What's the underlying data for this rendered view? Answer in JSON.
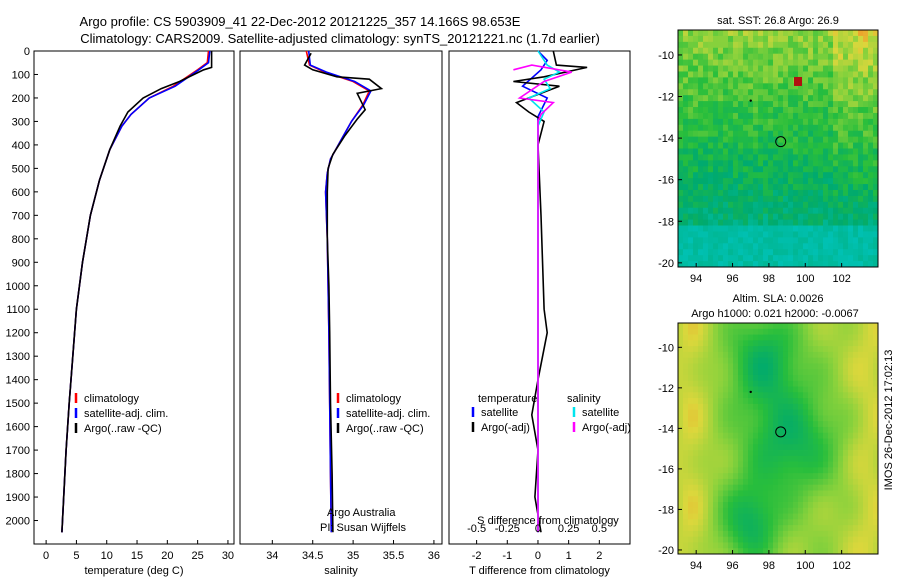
{
  "header": {
    "line1": "Argo profile: CS 5903909_41 22-Dec-2012 20121225_357 14.166S 98.653E",
    "line2": "Climatology: CARS2009. Satellite-adjusted climatology: synTS_20121221.nc (1.7d earlier)"
  },
  "side_stamp": "IMOS 26-Dec-2012 17:02:13",
  "colors": {
    "climatology": "#ff0000",
    "satellite": "#0000ff",
    "argo": "#000000",
    "sal_sat": "#00e5ee",
    "sal_argo": "#ff00ff"
  },
  "chart_data": [
    {
      "type": "line",
      "id": "temperature",
      "xlabel": "temperature (deg C)",
      "ylabel": "",
      "xlim": [
        -2,
        31
      ],
      "ylim": [
        2100,
        0
      ],
      "xticks": [
        0,
        5,
        10,
        15,
        20,
        25,
        30
      ],
      "yticks": [
        0,
        100,
        200,
        300,
        400,
        500,
        600,
        700,
        800,
        900,
        1000,
        1100,
        1200,
        1300,
        1400,
        1500,
        1600,
        1700,
        1800,
        1900,
        2000
      ],
      "legend": [
        "climatology",
        "satellite-adj. clim.",
        "Argo(..raw -QC)"
      ],
      "series": [
        {
          "name": "climatology",
          "color": "#ff0000",
          "points": [
            [
              26.8,
              0
            ],
            [
              26.6,
              50
            ],
            [
              25,
              80
            ],
            [
              21,
              150
            ],
            [
              17,
              200
            ],
            [
              14,
              270
            ],
            [
              12.5,
              320
            ],
            [
              10.5,
              420
            ],
            [
              8.8,
              550
            ],
            [
              7.3,
              700
            ],
            [
              6,
              900
            ],
            [
              5,
              1100
            ],
            [
              4.4,
              1300
            ],
            [
              3.8,
              1500
            ],
            [
              3.3,
              1700
            ],
            [
              2.9,
              1900
            ],
            [
              2.6,
              2050
            ]
          ]
        },
        {
          "name": "satellite-adj. clim.",
          "color": "#0000ff",
          "points": [
            [
              27,
              0
            ],
            [
              26.8,
              50
            ],
            [
              25.2,
              80
            ],
            [
              21.3,
              150
            ],
            [
              17,
              200
            ],
            [
              14,
              270
            ],
            [
              12.5,
              320
            ],
            [
              10.5,
              420
            ],
            [
              8.8,
              550
            ],
            [
              7.3,
              700
            ],
            [
              6,
              900
            ],
            [
              5,
              1100
            ],
            [
              4.4,
              1300
            ],
            [
              3.8,
              1500
            ],
            [
              3.3,
              1700
            ],
            [
              2.9,
              1900
            ],
            [
              2.6,
              2050
            ]
          ]
        },
        {
          "name": "Argo(..raw -QC)",
          "color": "#000000",
          "points": [
            [
              27.3,
              0
            ],
            [
              27.3,
              70
            ],
            [
              26,
              80
            ],
            [
              22,
              130
            ],
            [
              19,
              160
            ],
            [
              16,
              200
            ],
            [
              13.5,
              260
            ],
            [
              12.2,
              320
            ],
            [
              10.5,
              420
            ],
            [
              8.8,
              550
            ],
            [
              7.3,
              700
            ],
            [
              6,
              900
            ],
            [
              5,
              1100
            ],
            [
              4.4,
              1300
            ],
            [
              3.8,
              1500
            ],
            [
              3.3,
              1700
            ],
            [
              2.9,
              1900
            ],
            [
              2.6,
              2050
            ]
          ]
        }
      ]
    },
    {
      "type": "line",
      "id": "salinity",
      "xlabel": "salinity",
      "ylabel": "",
      "xlim": [
        33.6,
        36.1
      ],
      "ylim": [
        2100,
        0
      ],
      "xticks": [
        34,
        34.5,
        35,
        35.5,
        36
      ],
      "legend": [
        "climatology",
        "satellite-adj. clim.",
        "Argo(..raw -QC)"
      ],
      "annotation": [
        "Argo Australia",
        "PI: Susan Wijffels"
      ],
      "series": [
        {
          "name": "climatology",
          "color": "#ff0000",
          "points": [
            [
              34.42,
              0
            ],
            [
              34.46,
              60
            ],
            [
              34.65,
              90
            ],
            [
              35.0,
              130
            ],
            [
              35.2,
              170
            ],
            [
              35.12,
              230
            ],
            [
              34.98,
              300
            ],
            [
              34.85,
              380
            ],
            [
              34.72,
              460
            ],
            [
              34.68,
              520
            ],
            [
              34.66,
              600
            ],
            [
              34.68,
              800
            ],
            [
              34.69,
              1000
            ],
            [
              34.7,
              1200
            ],
            [
              34.71,
              1500
            ],
            [
              34.72,
              1800
            ],
            [
              34.73,
              2050
            ]
          ]
        },
        {
          "name": "satellite-adj. clim.",
          "color": "#0000ff",
          "points": [
            [
              34.45,
              0
            ],
            [
              34.47,
              60
            ],
            [
              34.67,
              90
            ],
            [
              35.02,
              130
            ],
            [
              35.22,
              170
            ],
            [
              35.13,
              230
            ],
            [
              34.98,
              300
            ],
            [
              34.85,
              380
            ],
            [
              34.72,
              460
            ],
            [
              34.68,
              520
            ],
            [
              34.66,
              600
            ],
            [
              34.68,
              800
            ],
            [
              34.69,
              1000
            ],
            [
              34.7,
              1200
            ],
            [
              34.71,
              1500
            ],
            [
              34.72,
              1800
            ],
            [
              34.73,
              2050
            ]
          ]
        },
        {
          "name": "Argo(..raw -QC)",
          "color": "#000000",
          "points": [
            [
              34.48,
              10
            ],
            [
              34.4,
              60
            ],
            [
              34.5,
              80
            ],
            [
              34.8,
              110
            ],
            [
              35.2,
              120
            ],
            [
              35.35,
              160
            ],
            [
              35.05,
              180
            ],
            [
              35.15,
              250
            ],
            [
              35.05,
              290
            ],
            [
              34.9,
              360
            ],
            [
              34.75,
              440
            ],
            [
              34.69,
              500
            ],
            [
              34.68,
              600
            ],
            [
              34.68,
              800
            ],
            [
              34.7,
              1000
            ],
            [
              34.71,
              1200
            ],
            [
              34.72,
              1500
            ],
            [
              34.74,
              1800
            ],
            [
              34.75,
              2050
            ]
          ]
        }
      ]
    },
    {
      "type": "line",
      "id": "difference",
      "xlabel": "T difference from climatology",
      "xlabel_top": "S difference from climatology",
      "xlim": [
        -2.9,
        3.0
      ],
      "ylim": [
        2100,
        0
      ],
      "xticks": [
        -2,
        -1,
        0,
        1,
        2
      ],
      "xticks_s": [
        "-0.5",
        "-0.25",
        "0",
        "0.25",
        "0.5"
      ],
      "legend_left_title": "temperature",
      "legend_right_title": "salinity",
      "legend": [
        "satellite",
        "Argo(-adj)",
        "satellite",
        "Argo(-adj)"
      ],
      "series": [
        {
          "name": "T satellite",
          "color": "#0000ff",
          "points": [
            [
              0,
              0
            ],
            [
              0.3,
              40
            ],
            [
              0.1,
              80
            ],
            [
              -0.5,
              150
            ],
            [
              0.3,
              200
            ],
            [
              0,
              280
            ],
            [
              0,
              500
            ],
            [
              0,
              1000
            ],
            [
              0,
              1500
            ],
            [
              0,
              2050
            ]
          ]
        },
        {
          "name": "T Argo(-adj)",
          "color": "#000000",
          "points": [
            [
              0.5,
              0
            ],
            [
              0.6,
              60
            ],
            [
              1.6,
              70
            ],
            [
              0.2,
              110
            ],
            [
              -0.8,
              130
            ],
            [
              0.7,
              150
            ],
            [
              -0.7,
              220
            ],
            [
              -0.3,
              260
            ],
            [
              0.2,
              300
            ],
            [
              0,
              400
            ],
            [
              0.1,
              700
            ],
            [
              0.2,
              1100
            ],
            [
              0.3,
              1200
            ],
            [
              0,
              1400
            ],
            [
              -0.2,
              1550
            ],
            [
              0,
              1700
            ],
            [
              -0.1,
              1900
            ],
            [
              0.1,
              2050
            ]
          ]
        },
        {
          "name": "S satellite",
          "color": "#00e5ee",
          "points": [
            [
              0,
              0
            ],
            [
              0.3,
              60
            ],
            [
              0.7,
              90
            ],
            [
              0.2,
              120
            ],
            [
              0.4,
              160
            ],
            [
              -0.3,
              200
            ],
            [
              0.2,
              260
            ],
            [
              0,
              320
            ],
            [
              0,
              600
            ],
            [
              0,
              1200
            ],
            [
              0,
              2050
            ]
          ]
        },
        {
          "name": "S Argo(-adj)",
          "color": "#ff00ff",
          "points": [
            [
              -0.8,
              80
            ],
            [
              -0.2,
              60
            ],
            [
              1.1,
              90
            ],
            [
              0.2,
              130
            ],
            [
              -0.6,
              200
            ],
            [
              0.5,
              220
            ],
            [
              0.1,
              270
            ],
            [
              0,
              300
            ],
            [
              0,
              600
            ],
            [
              0,
              2050
            ]
          ]
        }
      ]
    },
    {
      "type": "heatmap",
      "id": "sst",
      "title": "sat. SST: 26.8 Argo: 26.9",
      "xticks": [
        94,
        96,
        98,
        100,
        102
      ],
      "yticks": [
        -10,
        -12,
        -14,
        -16,
        -18,
        -20
      ],
      "xlim": [
        93,
        104
      ],
      "ylim": [
        -20.2,
        -8.8
      ],
      "argo_position": [
        98.65,
        -14.17
      ]
    },
    {
      "type": "heatmap",
      "id": "sla",
      "title": "Altim. SLA: 0.0026",
      "subtitle": "Argo h1000: 0.021 h2000: -0.0067",
      "xticks": [
        94,
        96,
        98,
        100,
        102
      ],
      "yticks": [
        -10,
        -12,
        -14,
        -16,
        -18,
        -20
      ],
      "xlim": [
        93,
        104
      ],
      "ylim": [
        -20.2,
        -8.8
      ],
      "argo_position": [
        98.65,
        -14.17
      ]
    }
  ]
}
